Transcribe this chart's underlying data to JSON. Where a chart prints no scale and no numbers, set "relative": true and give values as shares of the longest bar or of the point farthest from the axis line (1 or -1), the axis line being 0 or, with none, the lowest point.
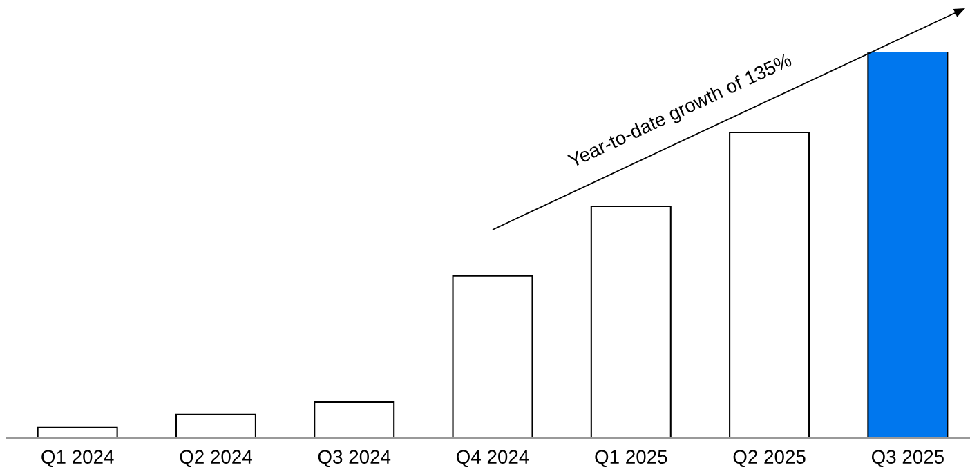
{
  "chart_data": {
    "type": "bar",
    "relative": true,
    "categories": [
      "Q1 2024",
      "Q2 2024",
      "Q3 2024",
      "Q4 2024",
      "Q1 2025",
      "Q2 2025",
      "Q3 2025"
    ],
    "values": [
      0.027,
      0.061,
      0.093,
      0.42,
      0.6,
      0.791,
      1
    ],
    "colors": [
      "#ffffff",
      "#ffffff",
      "#ffffff",
      "#ffffff",
      "#ffffff",
      "#ffffff",
      "#0077ee"
    ],
    "annotations": [
      "Year-to-date growth of 135%"
    ],
    "grid": false,
    "legend": false
  }
}
